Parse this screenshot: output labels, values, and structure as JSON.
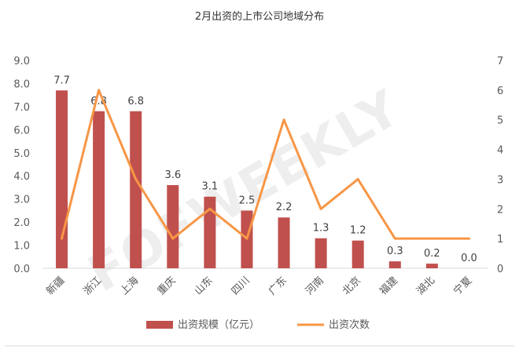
{
  "chart_data": {
    "type": "bar",
    "title": "2月出资的上市公司地域分布",
    "categories": [
      "新疆",
      "浙江",
      "上海",
      "重庆",
      "山东",
      "四川",
      "广东",
      "河南",
      "北京",
      "福建",
      "湖北",
      "宁夏"
    ],
    "series": [
      {
        "name": "出资规模（亿元）",
        "type": "bar",
        "axis": "left",
        "color": "#c0504d",
        "values": [
          7.7,
          6.8,
          6.8,
          3.6,
          3.1,
          2.5,
          2.2,
          1.3,
          1.2,
          0.3,
          0.2,
          0.0
        ],
        "labels": [
          "7.7",
          "6.8",
          "6.8",
          "3.6",
          "3.1",
          "2.5",
          "2.2",
          "1.3",
          "1.2",
          "0.3",
          "0.2",
          "0.0"
        ]
      },
      {
        "name": "出资次数",
        "type": "line",
        "axis": "right",
        "color": "#f79646",
        "values": [
          1,
          6,
          3,
          1,
          2,
          1,
          5,
          2,
          3,
          1,
          1,
          1
        ]
      }
    ],
    "y_left": {
      "ylim": [
        0,
        9
      ],
      "ticks": [
        "0.0",
        "1.0",
        "2.0",
        "3.0",
        "4.0",
        "5.0",
        "6.0",
        "7.0",
        "8.0",
        "9.0"
      ]
    },
    "y_right": {
      "ylim": [
        0,
        7
      ],
      "ticks": [
        "0",
        "1",
        "2",
        "3",
        "4",
        "5",
        "6",
        "7"
      ]
    },
    "grid": false,
    "legend_position": "bottom",
    "watermark": "FOFWEEKLY"
  }
}
